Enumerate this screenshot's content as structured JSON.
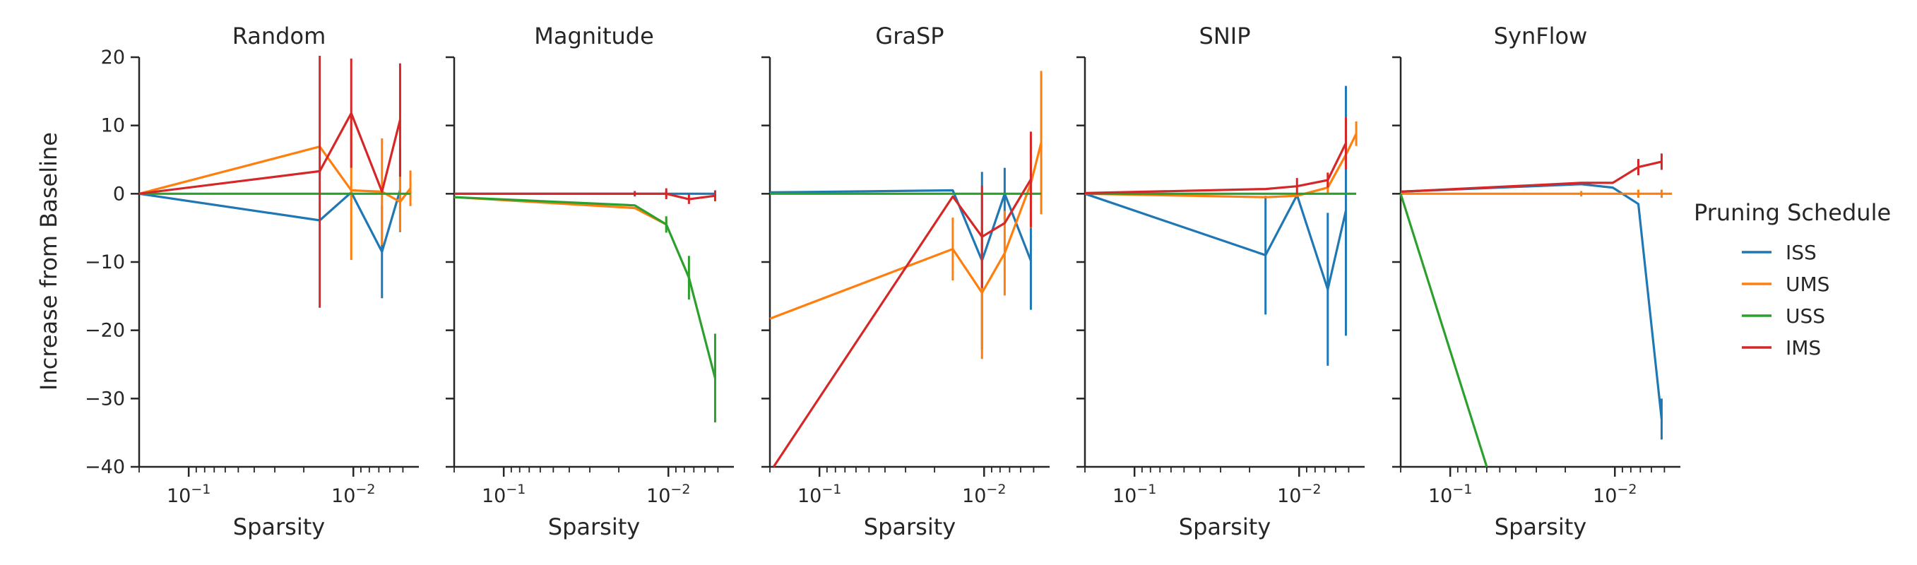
{
  "figure": {
    "ylabel": "Increase from Baseline",
    "xlabel": "Sparsity",
    "legend": {
      "title": "Pruning Schedule",
      "placement": "right",
      "entries": [
        {
          "name": "ISS",
          "color": "#1f77b4"
        },
        {
          "name": "UMS",
          "color": "#ff7f0e"
        },
        {
          "name": "USS",
          "color": "#2ca02c"
        },
        {
          "name": "IMS",
          "color": "#d62728"
        }
      ]
    },
    "y_tick_labels": [
      "20",
      "10",
      "0",
      "−10",
      "−20",
      "−30",
      "−40"
    ],
    "x_tick_labels": [
      "10",
      "−1",
      "10",
      "−2"
    ]
  },
  "chart_data": [
    {
      "type": "line",
      "title": "Random",
      "xlabel": "Sparsity",
      "ylabel": "Increase from Baseline",
      "xscale": "log-reversed",
      "xlim": [
        0.2,
        0.004
      ],
      "ylim": [
        -40,
        20
      ],
      "series": [
        {
          "name": "ISS",
          "color": "#1f77b4",
          "points": [
            [
              0.2,
              0,
              0
            ],
            [
              0.016,
              -3.9,
              0
            ],
            [
              0.0103,
              0.2,
              0
            ],
            [
              0.0067,
              -8.5,
              6.8
            ],
            [
              0.0052,
              0.5,
              6.1
            ]
          ]
        },
        {
          "name": "UMS",
          "color": "#ff7f0e",
          "points": [
            [
              0.2,
              0,
              0
            ],
            [
              0.016,
              6.9,
              0
            ],
            [
              0.0103,
              0.5,
              10.2
            ],
            [
              0.0067,
              0.3,
              7.8
            ],
            [
              0.0052,
              -1.2,
              4.3
            ],
            [
              0.0045,
              0.8,
              2.6
            ]
          ]
        },
        {
          "name": "USS",
          "color": "#2ca02c",
          "points": [
            [
              0.2,
              0,
              0
            ],
            [
              0.0045,
              0,
              0
            ]
          ]
        },
        {
          "name": "IMS",
          "color": "#d62728",
          "points": [
            [
              0.2,
              0,
              0
            ],
            [
              0.016,
              3.3,
              20
            ],
            [
              0.0103,
              11.8,
              8
            ],
            [
              0.0067,
              0.3,
              0
            ],
            [
              0.0052,
              10.8,
              8.3
            ]
          ]
        }
      ]
    },
    {
      "type": "line",
      "title": "Magnitude",
      "xlabel": "Sparsity",
      "ylabel": "Increase from Baseline",
      "xscale": "log-reversed",
      "xlim": [
        0.2,
        0.004
      ],
      "ylim": [
        -40,
        20
      ],
      "series": [
        {
          "name": "ISS",
          "color": "#1f77b4",
          "points": [
            [
              0.2,
              0,
              0
            ],
            [
              0.016,
              0,
              0
            ],
            [
              0.0103,
              0,
              0.4
            ],
            [
              0.0067,
              0,
              0
            ],
            [
              0.0052,
              0,
              0.4
            ]
          ]
        },
        {
          "name": "UMS",
          "color": "#ff7f0e",
          "points": [
            [
              0.2,
              -0.5,
              0
            ],
            [
              0.016,
              -2.1,
              0
            ],
            [
              0.0103,
              -4.5,
              0.8
            ]
          ]
        },
        {
          "name": "USS",
          "color": "#2ca02c",
          "points": [
            [
              0.2,
              -0.5,
              0
            ],
            [
              0.016,
              -1.7,
              0
            ],
            [
              0.0103,
              -4.5,
              1.2
            ],
            [
              0.0075,
              -12.3,
              3.2
            ],
            [
              0.0052,
              -27,
              6.5
            ]
          ]
        },
        {
          "name": "IMS",
          "color": "#d62728",
          "points": [
            [
              0.2,
              0,
              0
            ],
            [
              0.016,
              0,
              0.4
            ],
            [
              0.0103,
              0,
              0.8
            ],
            [
              0.0075,
              -0.8,
              0.7
            ],
            [
              0.0052,
              -0.3,
              0.8
            ]
          ]
        }
      ]
    },
    {
      "type": "line",
      "title": "GraSP",
      "xlabel": "Sparsity",
      "ylabel": "Increase from Baseline",
      "xscale": "log-reversed",
      "xlim": [
        0.2,
        0.004
      ],
      "ylim": [
        -40,
        20
      ],
      "series": [
        {
          "name": "ISS",
          "color": "#1f77b4",
          "points": [
            [
              0.2,
              0.2,
              0
            ],
            [
              0.0155,
              0.5,
              0
            ],
            [
              0.0103,
              -9.8,
              13
            ],
            [
              0.0075,
              0,
              3.8
            ],
            [
              0.0052,
              -9.8,
              7.2
            ]
          ]
        },
        {
          "name": "UMS",
          "color": "#ff7f0e",
          "points": [
            [
              0.2,
              -18.3,
              0
            ],
            [
              0.0155,
              -8.1,
              4.6
            ],
            [
              0.0103,
              -14.5,
              9.7
            ],
            [
              0.0075,
              -8.7,
              6.2
            ],
            [
              0.0052,
              1.5,
              6.5
            ],
            [
              0.0045,
              7.5,
              10.5
            ]
          ]
        },
        {
          "name": "USS",
          "color": "#2ca02c",
          "points": [
            [
              0.2,
              0,
              0
            ],
            [
              0.0045,
              0,
              0
            ]
          ]
        },
        {
          "name": "IMS",
          "color": "#d62728",
          "points": [
            [
              0.19,
              -40,
              0
            ],
            [
              0.0155,
              -0.4,
              0
            ],
            [
              0.0103,
              -6.3,
              7.5
            ],
            [
              0.0075,
              -4.3,
              0
            ],
            [
              0.0052,
              2.1,
              7
            ]
          ]
        }
      ]
    },
    {
      "type": "line",
      "title": "SNIP",
      "xlabel": "Sparsity",
      "ylabel": "Increase from Baseline",
      "xscale": "log-reversed",
      "xlim": [
        0.2,
        0.004
      ],
      "ylim": [
        -40,
        20
      ],
      "series": [
        {
          "name": "ISS",
          "color": "#1f77b4",
          "points": [
            [
              0.2,
              0,
              0
            ],
            [
              0.016,
              -9,
              8.7
            ],
            [
              0.0103,
              -0.2,
              0
            ],
            [
              0.0067,
              -14,
              11.2
            ],
            [
              0.0052,
              -2.5,
              18.3
            ]
          ]
        },
        {
          "name": "UMS",
          "color": "#ff7f0e",
          "points": [
            [
              0.2,
              0,
              0
            ],
            [
              0.016,
              -0.5,
              0
            ],
            [
              0.0103,
              -0.3,
              0
            ],
            [
              0.0067,
              0.9,
              1
            ],
            [
              0.0052,
              5.7,
              1.7
            ],
            [
              0.0045,
              8.8,
              1.8
            ]
          ]
        },
        {
          "name": "USS",
          "color": "#2ca02c",
          "points": [
            [
              0.2,
              0,
              0
            ],
            [
              0.0045,
              0,
              0
            ]
          ]
        },
        {
          "name": "IMS",
          "color": "#d62728",
          "points": [
            [
              0.2,
              0.1,
              0
            ],
            [
              0.016,
              0.7,
              0
            ],
            [
              0.0103,
              1.1,
              1.2
            ],
            [
              0.0067,
              2,
              1.1
            ],
            [
              0.0052,
              7.4,
              3.8
            ]
          ]
        }
      ]
    },
    {
      "type": "line",
      "title": "SynFlow",
      "xlabel": "Sparsity",
      "ylabel": "Increase from Baseline",
      "xscale": "log-reversed",
      "xlim": [
        0.2,
        0.004
      ],
      "ylim": [
        -40,
        20
      ],
      "series": [
        {
          "name": "ISS",
          "color": "#1f77b4",
          "points": [
            [
              0.2,
              0.3,
              0
            ],
            [
              0.016,
              1.4,
              0
            ],
            [
              0.0103,
              0.9,
              0
            ],
            [
              0.0072,
              -1.5,
              0
            ],
            [
              0.0052,
              -33,
              3
            ]
          ]
        },
        {
          "name": "UMS",
          "color": "#ff7f0e",
          "points": [
            [
              0.2,
              0,
              0
            ],
            [
              0.016,
              0,
              0.4
            ],
            [
              0.0103,
              0,
              0
            ],
            [
              0.0072,
              0,
              0.6
            ],
            [
              0.0052,
              0,
              0.6
            ],
            [
              0.0045,
              0,
              0
            ]
          ]
        },
        {
          "name": "USS",
          "color": "#2ca02c",
          "points": [
            [
              0.2,
              0,
              0
            ],
            [
              0.06,
              -40,
              0
            ]
          ]
        },
        {
          "name": "IMS",
          "color": "#d62728",
          "points": [
            [
              0.2,
              0.3,
              0
            ],
            [
              0.016,
              1.6,
              0
            ],
            [
              0.0103,
              1.6,
              0
            ],
            [
              0.0072,
              3.9,
              1.2
            ],
            [
              0.0052,
              4.7,
              1.2
            ]
          ]
        }
      ]
    }
  ]
}
